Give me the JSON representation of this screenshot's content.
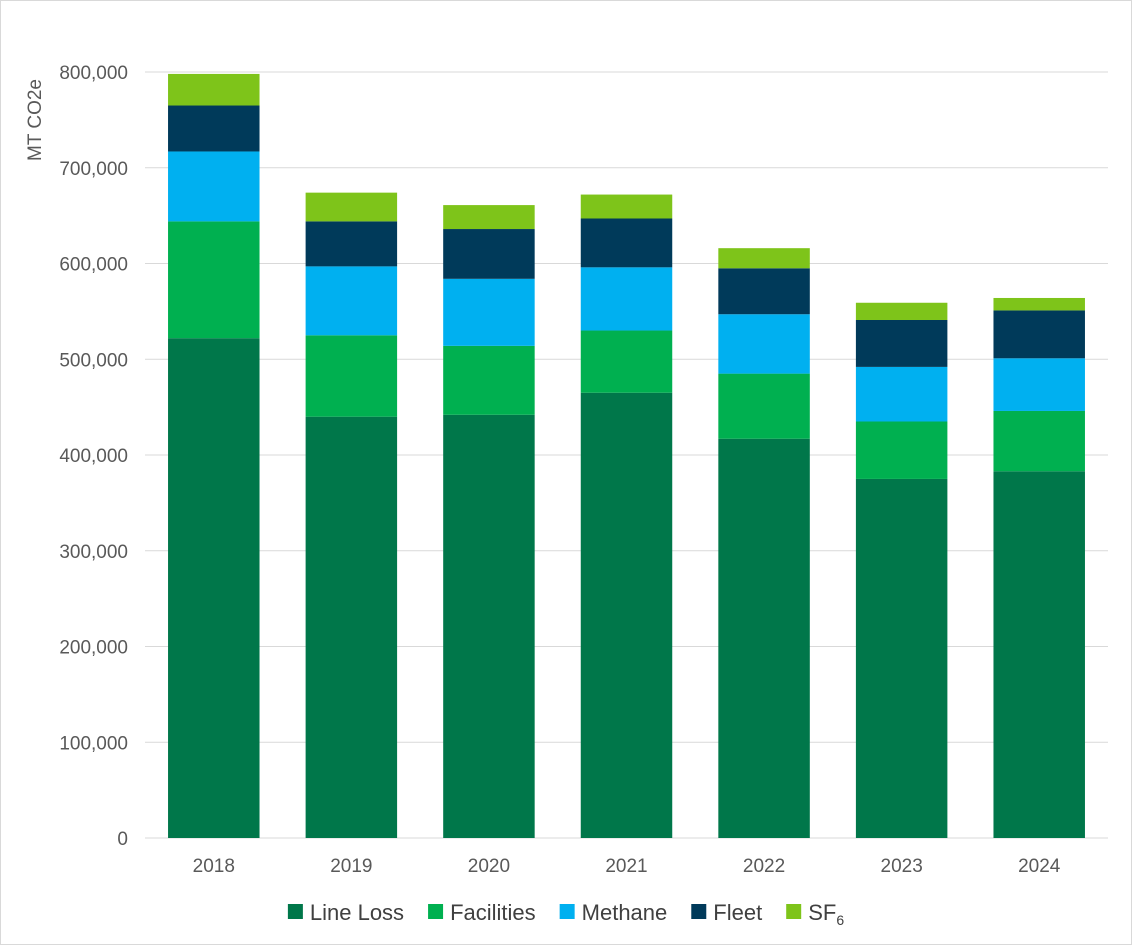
{
  "chart_data": {
    "type": "bar",
    "stacked": true,
    "categories": [
      "2018",
      "2019",
      "2020",
      "2021",
      "2022",
      "2023",
      "2024"
    ],
    "series": [
      {
        "name": "Line Loss",
        "color": "#00774a",
        "values": [
          522000,
          440000,
          442000,
          465000,
          417000,
          375000,
          383000
        ]
      },
      {
        "name": "Facilities",
        "color": "#00b050",
        "values": [
          122000,
          85000,
          72000,
          65000,
          68000,
          60000,
          63000
        ]
      },
      {
        "name": "Methane",
        "color": "#00b0f0",
        "values": [
          73000,
          72000,
          70000,
          66000,
          62000,
          57000,
          55000
        ]
      },
      {
        "name": "Fleet",
        "color": "#003a5a",
        "values": [
          48000,
          47000,
          52000,
          51000,
          48000,
          49000,
          50000
        ]
      },
      {
        "name": "SF",
        "name_subscript": "6",
        "color": "#7ec41a",
        "values": [
          33000,
          30000,
          25000,
          25000,
          21000,
          18000,
          13000
        ]
      }
    ],
    "ylabel": "MT CO2e",
    "ylim": [
      0,
      800000
    ],
    "yticks": [
      "0",
      "100,000",
      "200,000",
      "300,000",
      "400,000",
      "500,000",
      "600,000",
      "700,000",
      "800,000"
    ],
    "grid": true,
    "legend": "bottom"
  }
}
